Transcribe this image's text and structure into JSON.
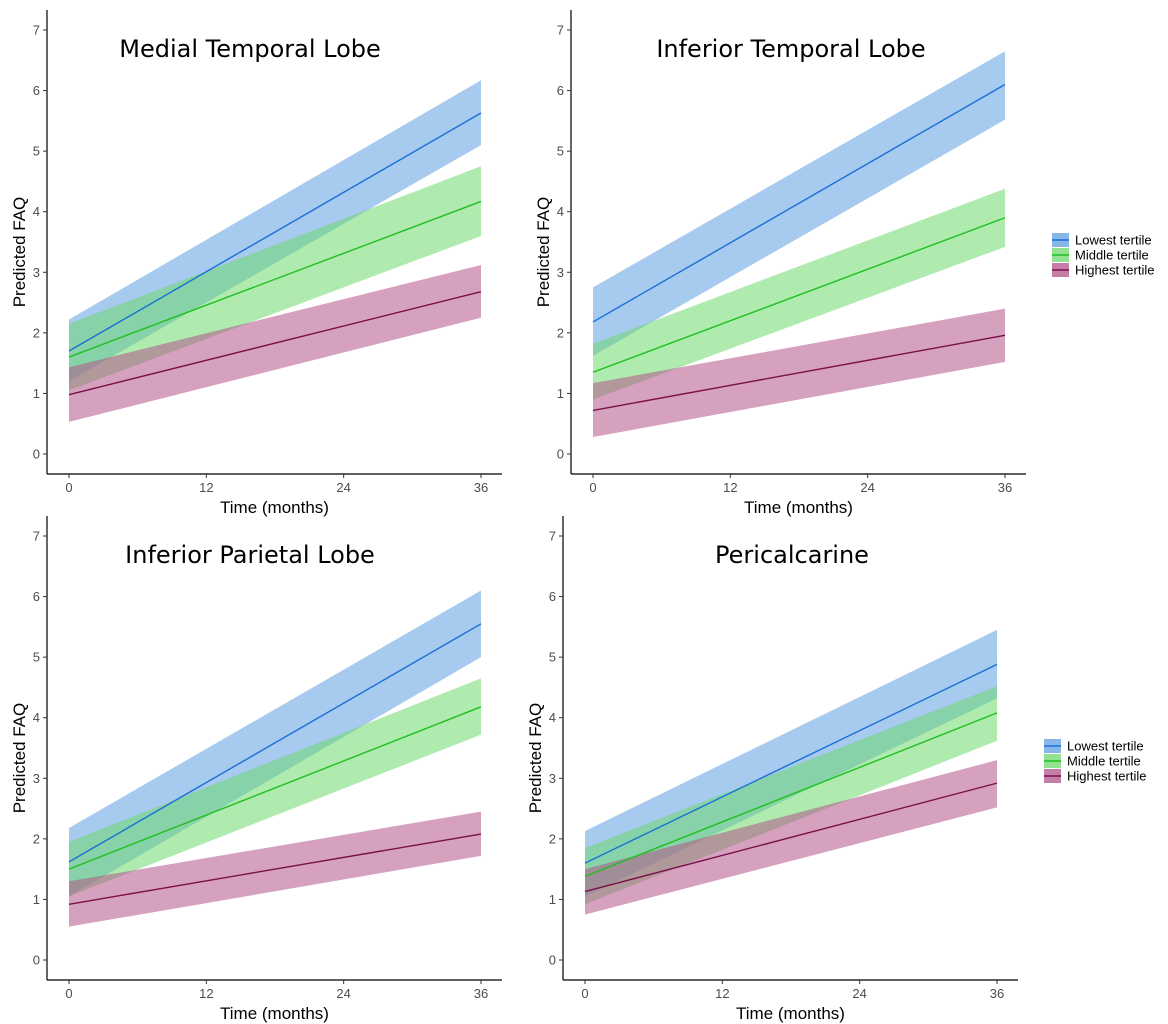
{
  "chart_data": [
    {
      "type": "line",
      "title": "Medial Temporal Lobe",
      "xlabel": "Time (months)",
      "ylabel": "Predicted FAQ",
      "xlim": [
        0,
        36
      ],
      "ylim": [
        0,
        7
      ],
      "x_ticks": [
        "0",
        "12",
        "24",
        "36"
      ],
      "y_ticks": [
        "0",
        "1",
        "2",
        "3",
        "4",
        "5",
        "6",
        "7"
      ],
      "grid": false,
      "show_legend": false,
      "series": [
        {
          "name": "Lowest tertile",
          "x": [
            0,
            36
          ],
          "values": [
            1.7,
            5.63
          ],
          "lower": [
            1.2,
            5.1
          ],
          "upper": [
            2.22,
            6.17
          ]
        },
        {
          "name": "Middle tertile",
          "x": [
            0,
            36
          ],
          "values": [
            1.6,
            4.17
          ],
          "lower": [
            1.05,
            3.6
          ],
          "upper": [
            2.15,
            4.75
          ]
        },
        {
          "name": "Highest tertile",
          "x": [
            0,
            36
          ],
          "values": [
            0.98,
            2.68
          ],
          "lower": [
            0.53,
            2.25
          ],
          "upper": [
            1.43,
            3.12
          ]
        }
      ]
    },
    {
      "type": "line",
      "title": "Inferior Temporal Lobe",
      "xlabel": "Time (months)",
      "ylabel": "Predicted FAQ",
      "xlim": [
        0,
        36
      ],
      "ylim": [
        0,
        7
      ],
      "x_ticks": [
        "0",
        "12",
        "24",
        "36"
      ],
      "y_ticks": [
        "0",
        "1",
        "2",
        "3",
        "4",
        "5",
        "6",
        "7"
      ],
      "grid": false,
      "show_legend": true,
      "legend_position": "right",
      "series": [
        {
          "name": "Lowest tertile",
          "x": [
            0,
            36
          ],
          "values": [
            2.18,
            6.1
          ],
          "lower": [
            1.62,
            5.52
          ],
          "upper": [
            2.75,
            6.65
          ]
        },
        {
          "name": "Middle tertile",
          "x": [
            0,
            36
          ],
          "values": [
            1.35,
            3.9
          ],
          "lower": [
            0.9,
            3.42
          ],
          "upper": [
            1.82,
            4.38
          ]
        },
        {
          "name": "Highest tertile",
          "x": [
            0,
            36
          ],
          "values": [
            0.72,
            1.96
          ],
          "lower": [
            0.28,
            1.52
          ],
          "upper": [
            1.17,
            2.4
          ]
        }
      ]
    },
    {
      "type": "line",
      "title": "Inferior Parietal Lobe",
      "xlabel": "Time (months)",
      "ylabel": "Predicted FAQ",
      "xlim": [
        0,
        36
      ],
      "ylim": [
        0,
        7
      ],
      "x_ticks": [
        "0",
        "12",
        "24",
        "36"
      ],
      "y_ticks": [
        "0",
        "1",
        "2",
        "3",
        "4",
        "5",
        "6",
        "7"
      ],
      "grid": false,
      "show_legend": false,
      "series": [
        {
          "name": "Lowest tertile",
          "x": [
            0,
            36
          ],
          "values": [
            1.62,
            5.55
          ],
          "lower": [
            1.05,
            5.0
          ],
          "upper": [
            2.18,
            6.1
          ]
        },
        {
          "name": "Middle tertile",
          "x": [
            0,
            36
          ],
          "values": [
            1.5,
            4.18
          ],
          "lower": [
            1.05,
            3.72
          ],
          "upper": [
            1.95,
            4.65
          ]
        },
        {
          "name": "Highest tertile",
          "x": [
            0,
            36
          ],
          "values": [
            0.92,
            2.08
          ],
          "lower": [
            0.55,
            1.72
          ],
          "upper": [
            1.3,
            2.45
          ]
        }
      ]
    },
    {
      "type": "line",
      "title": "Pericalcarine",
      "xlabel": "Time (months)",
      "ylabel": "Predicted FAQ",
      "xlim": [
        0,
        36
      ],
      "ylim": [
        0,
        7
      ],
      "x_ticks": [
        "0",
        "12",
        "24",
        "36"
      ],
      "y_ticks": [
        "0",
        "1",
        "2",
        "3",
        "4",
        "5",
        "6",
        "7"
      ],
      "grid": false,
      "show_legend": true,
      "legend_position": "right",
      "series": [
        {
          "name": "Lowest tertile",
          "x": [
            0,
            36
          ],
          "values": [
            1.6,
            4.88
          ],
          "lower": [
            1.05,
            4.32
          ],
          "upper": [
            2.13,
            5.45
          ]
        },
        {
          "name": "Middle tertile",
          "x": [
            0,
            36
          ],
          "values": [
            1.38,
            4.08
          ],
          "lower": [
            0.92,
            3.62
          ],
          "upper": [
            1.85,
            4.52
          ]
        },
        {
          "name": "Highest tertile",
          "x": [
            0,
            36
          ],
          "values": [
            1.13,
            2.92
          ],
          "lower": [
            0.75,
            2.52
          ],
          "upper": [
            1.5,
            3.3
          ]
        }
      ]
    }
  ],
  "colors": {
    "Lowest tertile": {
      "line": "#1a6fd6",
      "fill": "#5f9ee2"
    },
    "Middle tertile": {
      "line": "#1fbf1f",
      "fill": "#6ed86e"
    },
    "Highest tertile": {
      "line": "#7a0f4a",
      "fill": "#b2538a"
    }
  }
}
